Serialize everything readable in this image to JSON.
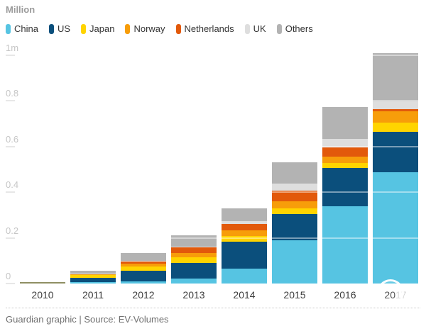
{
  "title": "Million",
  "footer": {
    "text": "Guardian graphic | Source: EV-Volumes"
  },
  "chart_data": {
    "type": "bar",
    "stacked": true,
    "title": "Million",
    "categories": [
      "2010",
      "2011",
      "2012",
      "2013",
      "2014",
      "2015",
      "2016",
      "2017"
    ],
    "series": [
      {
        "name": "China",
        "color": "#56c4e2",
        "values": [
          0.002,
          0.006,
          0.01,
          0.022,
          0.065,
          0.19,
          0.337,
          0.489
        ]
      },
      {
        "name": "US",
        "color": "#0b4f7c",
        "values": [
          0.001,
          0.018,
          0.046,
          0.068,
          0.118,
          0.114,
          0.17,
          0.176
        ]
      },
      {
        "name": "Japan",
        "color": "#ffd400",
        "values": [
          0.001,
          0.014,
          0.02,
          0.026,
          0.024,
          0.026,
          0.021,
          0.04
        ]
      },
      {
        "name": "Norway",
        "color": "#f79d0a",
        "values": [
          0.0,
          0.002,
          0.012,
          0.016,
          0.026,
          0.031,
          0.027,
          0.051
        ]
      },
      {
        "name": "Netherlands",
        "color": "#e2590b",
        "values": [
          0.0,
          0.001,
          0.008,
          0.025,
          0.028,
          0.047,
          0.042,
          0.009
        ]
      },
      {
        "name": "UK",
        "color": "#dedede",
        "values": [
          0.0,
          0.002,
          0.004,
          0.006,
          0.012,
          0.031,
          0.037,
          0.032
        ]
      },
      {
        "name": "Others",
        "color": "#b3b3b3",
        "values": [
          0.001,
          0.012,
          0.033,
          0.047,
          0.057,
          0.092,
          0.139,
          0.212
        ]
      }
    ],
    "ylim": [
      0,
      1
    ],
    "yticks": [
      {
        "label": "1m",
        "value": 1.0
      },
      {
        "label": "0.8",
        "value": 0.8
      },
      {
        "label": "0.6",
        "value": 0.6
      },
      {
        "label": "0.4",
        "value": 0.4
      },
      {
        "label": "0.2",
        "value": 0.2
      },
      {
        "label": "0",
        "value": 0.0
      }
    ],
    "gridlines_over_bars": [
      0.2,
      0.4,
      0.6,
      0.8,
      1.0
    ],
    "legend_position": "top-left",
    "x_axis": {
      "faded_label": "2017",
      "visible_prefix": "20"
    }
  },
  "colors": {
    "background": "#ffffff",
    "hairline_2010_bar": "#8f8f63",
    "axis_label": "#c6c6c6",
    "year_label": "#3d3d3d"
  }
}
